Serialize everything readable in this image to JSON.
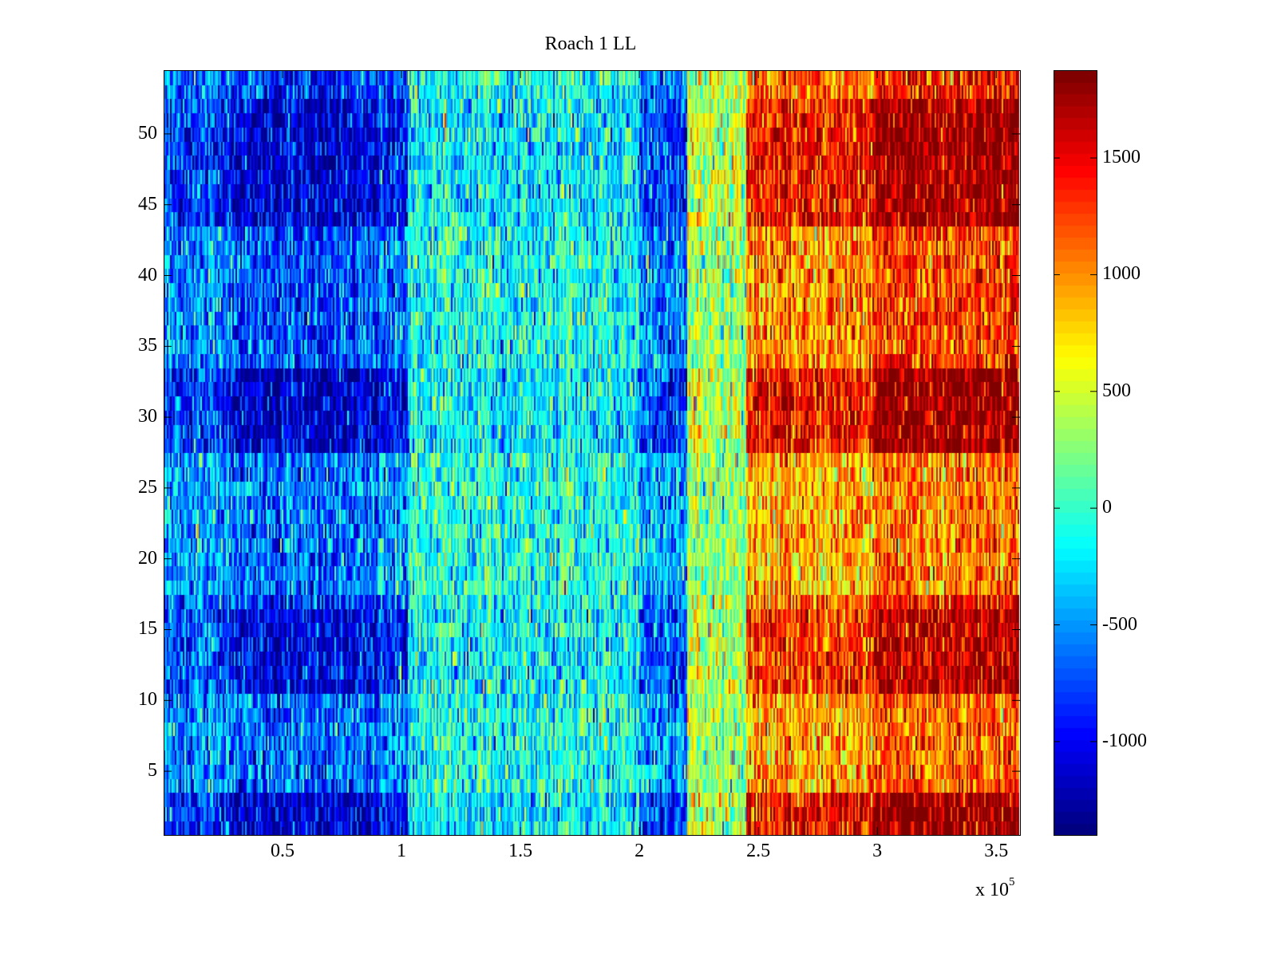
{
  "chart_data": {
    "type": "heatmap",
    "title": "Roach 1 LL",
    "xlabel": "",
    "ylabel": "",
    "x_multiplier_label": "x 10",
    "x_multiplier_exponent": "5",
    "xlim": [
      0,
      3.6
    ],
    "ylim": [
      0.5,
      54.5
    ],
    "x_ticks": [
      0.5,
      1,
      1.5,
      2,
      2.5,
      3,
      3.5
    ],
    "x_tick_labels": [
      "0.5",
      "1",
      "1.5",
      "2",
      "2.5",
      "3",
      "3.5"
    ],
    "y_ticks": [
      5,
      10,
      15,
      20,
      25,
      30,
      35,
      40,
      45,
      50
    ],
    "y_tick_labels": [
      "5",
      "10",
      "15",
      "20",
      "25",
      "30",
      "35",
      "40",
      "45",
      "50"
    ],
    "rows": 54,
    "colormap": "jet",
    "clim": [
      -1400,
      1876
    ],
    "colorbar_ticks": [
      -1000,
      -500,
      0,
      500,
      1000,
      1500
    ],
    "colorbar_tick_labels": [
      "-1000",
      "-500",
      "0",
      "500",
      "1000",
      "1500"
    ],
    "column_profile": [
      {
        "x_start": 0.0,
        "x_end": 0.3,
        "mean": -600
      },
      {
        "x_start": 0.3,
        "x_end": 0.9,
        "mean": -850
      },
      {
        "x_start": 0.9,
        "x_end": 1.03,
        "mean": -700
      },
      {
        "x_start": 1.03,
        "x_end": 2.0,
        "mean": -150
      },
      {
        "x_start": 2.0,
        "x_end": 2.2,
        "mean": -550
      },
      {
        "x_start": 2.2,
        "x_end": 2.45,
        "mean": 350
      },
      {
        "x_start": 2.45,
        "x_end": 3.0,
        "mean": 1100
      },
      {
        "x_start": 3.0,
        "x_end": 3.6,
        "mean": 1400
      }
    ],
    "row_contrast": [
      {
        "rows": [
          1,
          3
        ],
        "gain": 1.35
      },
      {
        "rows": [
          11,
          16
        ],
        "gain": 1.2
      },
      {
        "rows": [
          28,
          33
        ],
        "gain": 1.35
      },
      {
        "rows": [
          44,
          52
        ],
        "gain": 1.3
      },
      {
        "rows": [
          4,
          10
        ],
        "gain": 0.8
      },
      {
        "rows": [
          18,
          27
        ],
        "gain": 0.75
      },
      {
        "rows": [
          34,
          43
        ],
        "gain": 0.9
      }
    ],
    "noise_std": 320
  }
}
